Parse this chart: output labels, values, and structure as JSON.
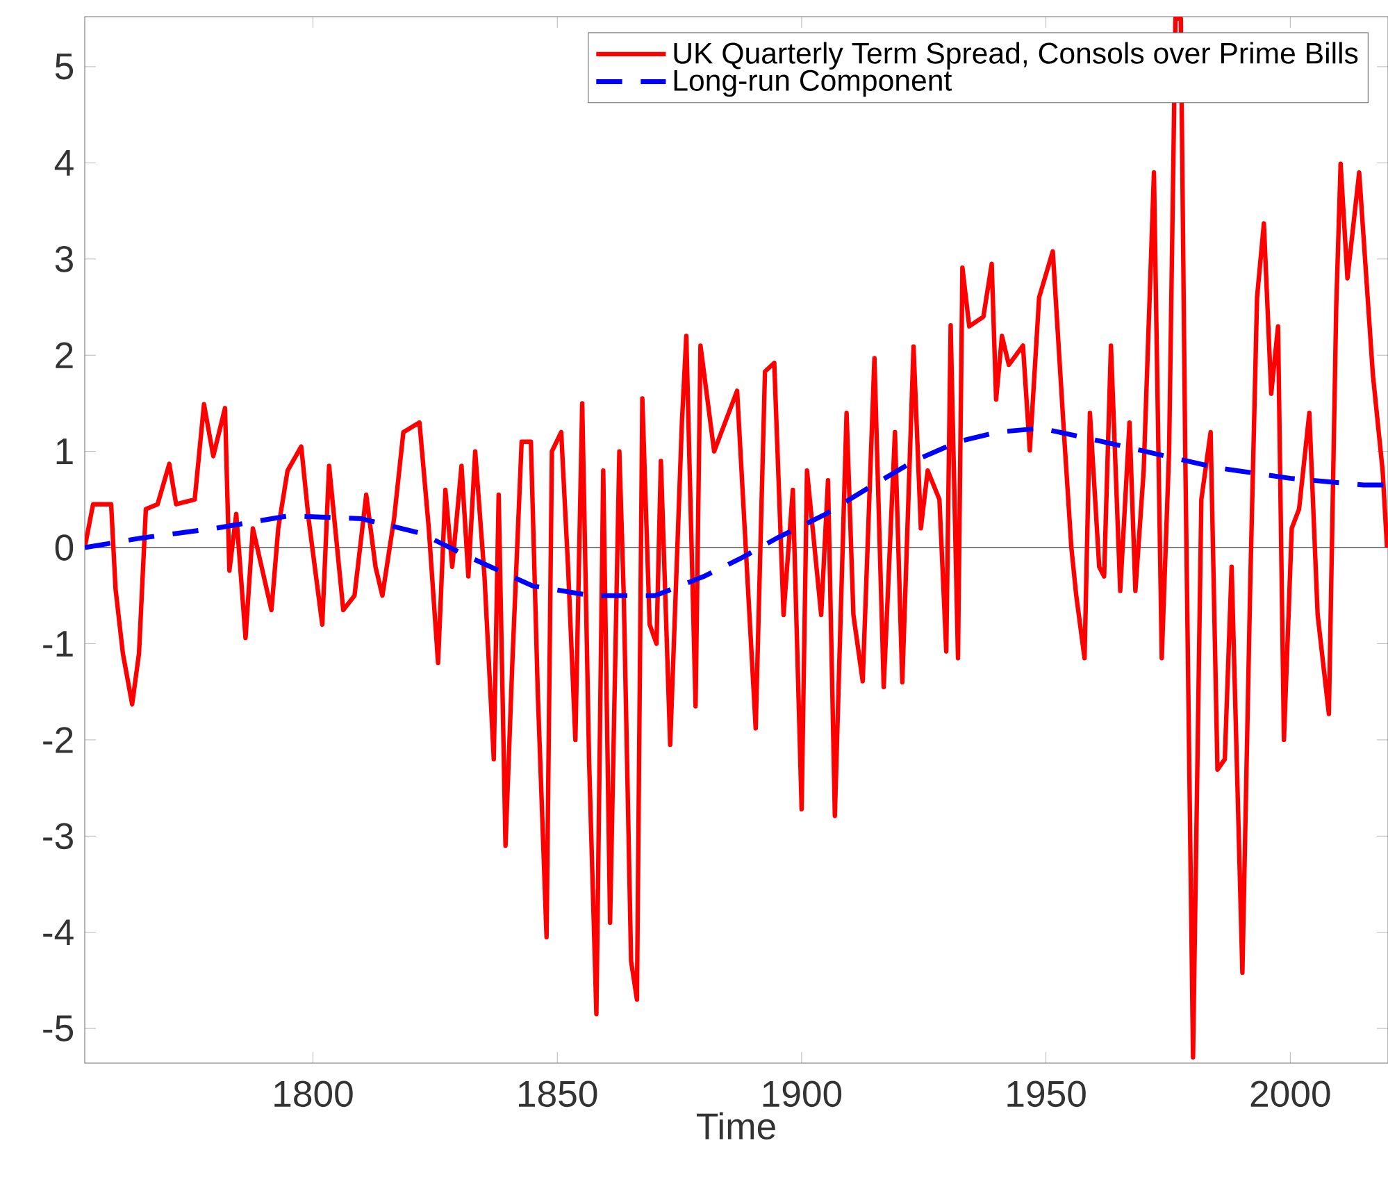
{
  "chart_data": {
    "type": "line",
    "xlabel": "Time",
    "xlim": [
      1753.3,
      2020
    ],
    "ylim": [
      -5.36,
      5.52
    ],
    "xticks": [
      1800,
      1850,
      1900,
      1950,
      2000
    ],
    "yticks": [
      -5,
      -4,
      -3,
      -2,
      -1,
      0,
      1,
      2,
      3,
      4,
      5
    ],
    "legend": "top right",
    "ref_lines": [
      {
        "axis": "y",
        "value": 0,
        "color": "#808080"
      }
    ],
    "series": [
      {
        "name": "UK Quarterly Term Spread, Consols over Prime Bills",
        "color": "#ff0000",
        "line_style": "solid",
        "x": [
          1753.3,
          1755.0,
          1758.7,
          1759.6,
          1761.1,
          1763.0,
          1764.4,
          1765.8,
          1768.2,
          1770.6,
          1772.0,
          1775.8,
          1777.7,
          1779.6,
          1782.0,
          1782.9,
          1784.3,
          1786.2,
          1787.7,
          1791.5,
          1792.9,
          1794.8,
          1797.6,
          1799.1,
          1801.9,
          1803.3,
          1806.2,
          1808.5,
          1810.9,
          1812.8,
          1814.2,
          1816.6,
          1818.5,
          1821.8,
          1823.7,
          1825.6,
          1827.1,
          1828.5,
          1830.4,
          1831.8,
          1833.2,
          1835.1,
          1837.0,
          1838.0,
          1839.4,
          1840.8,
          1842.7,
          1844.6,
          1846.0,
          1847.8,
          1848.9,
          1850.8,
          1852.2,
          1853.7,
          1855.1,
          1856.5,
          1858.0,
          1859.4,
          1860.8,
          1862.7,
          1863.6,
          1865.1,
          1866.3,
          1867.4,
          1868.9,
          1870.3,
          1871.2,
          1873.1,
          1875.5,
          1876.4,
          1878.3,
          1879.3,
          1882.1,
          1886.8,
          1890.6,
          1892.5,
          1894.4,
          1896.3,
          1898.2,
          1900.0,
          1901.1,
          1904.0,
          1905.4,
          1906.8,
          1909.2,
          1910.6,
          1912.5,
          1914.9,
          1916.8,
          1919.1,
          1920.6,
          1922.9,
          1924.4,
          1925.8,
          1928.2,
          1929.6,
          1930.5,
          1932.0,
          1932.9,
          1934.3,
          1937.2,
          1938.9,
          1939.8,
          1941.0,
          1942.4,
          1945.3,
          1946.7,
          1948.6,
          1951.4,
          1953.8,
          1955.2,
          1956.2,
          1957.9,
          1959.0,
          1960.9,
          1961.9,
          1963.3,
          1965.2,
          1967.1,
          1968.3,
          1970.0,
          1972.1,
          1973.7,
          1975.2,
          1976.5,
          1977.6,
          1978.5,
          1980.1,
          1981.8,
          1983.7,
          1985.1,
          1986.6,
          1988.0,
          1990.2,
          1991.8,
          1993.2,
          1994.6,
          1996.1,
          1997.5,
          1998.7,
          2000.3,
          2001.8,
          2003.9,
          2005.6,
          2007.9,
          2009.4,
          2010.3,
          2011.7,
          2014.1,
          2016.9,
          2018.9,
          2019.8
        ],
        "values": [
          0.0,
          0.45,
          0.45,
          -0.43,
          -1.1,
          -1.63,
          -1.1,
          0.4,
          0.45,
          0.87,
          0.45,
          0.5,
          1.49,
          0.95,
          1.45,
          -0.24,
          0.35,
          -0.94,
          0.2,
          -0.65,
          0.2,
          0.8,
          1.05,
          0.3,
          -0.8,
          0.85,
          -0.65,
          -0.5,
          0.55,
          -0.2,
          -0.5,
          0.3,
          1.2,
          1.3,
          0.2,
          -1.2,
          0.6,
          -0.2,
          0.85,
          -0.3,
          1.0,
          -0.3,
          -2.2,
          0.55,
          -3.1,
          -1.2,
          1.1,
          1.1,
          -1.5,
          -4.05,
          1.0,
          1.2,
          -0.2,
          -2.0,
          1.5,
          -2.2,
          -4.85,
          0.8,
          -3.9,
          1.0,
          -0.5,
          -4.3,
          -4.7,
          1.55,
          -0.8,
          -1.0,
          0.9,
          -2.05,
          1.3,
          2.2,
          -1.65,
          2.1,
          1.0,
          1.63,
          -1.88,
          1.83,
          1.92,
          -0.7,
          0.6,
          -2.72,
          0.8,
          -0.7,
          0.7,
          -2.79,
          1.4,
          -0.7,
          -1.39,
          1.97,
          -1.45,
          1.2,
          -1.4,
          2.09,
          0.2,
          0.8,
          0.5,
          -1.08,
          2.31,
          -1.15,
          2.91,
          2.3,
          2.4,
          2.95,
          1.54,
          2.2,
          1.9,
          2.1,
          1.01,
          2.6,
          3.08,
          1.1,
          0.0,
          -0.5,
          -1.15,
          1.4,
          -0.2,
          -0.3,
          2.1,
          -0.45,
          1.3,
          -0.45,
          0.8,
          3.9,
          -1.15,
          1.0,
          5.5,
          5.5,
          1.0,
          -5.3,
          0.5,
          1.2,
          -2.31,
          -2.2,
          -0.2,
          -4.42,
          -0.4,
          2.6,
          3.37,
          1.6,
          2.3,
          -2.0,
          0.2,
          0.4,
          1.4,
          -0.7,
          -1.73,
          2.5,
          3.99,
          2.8,
          3.9,
          1.8,
          0.8,
          0.0
        ]
      },
      {
        "name": "Long-run Component",
        "color": "#0000ff",
        "line_style": "dashed",
        "x": [
          1753.3,
          1765,
          1780,
          1795,
          1810,
          1822,
          1832,
          1845,
          1857,
          1870,
          1880,
          1888,
          1895,
          1905,
          1913,
          1923,
          1932,
          1940,
          1949,
          1960,
          1972,
          1985,
          2000,
          2015,
          2020
        ],
        "values": [
          0.0,
          0.1,
          0.2,
          0.33,
          0.3,
          0.15,
          -0.1,
          -0.4,
          -0.5,
          -0.5,
          -0.3,
          -0.1,
          0.1,
          0.35,
          0.6,
          0.9,
          1.1,
          1.2,
          1.24,
          1.12,
          0.98,
          0.83,
          0.72,
          0.65,
          0.65
        ]
      }
    ]
  }
}
